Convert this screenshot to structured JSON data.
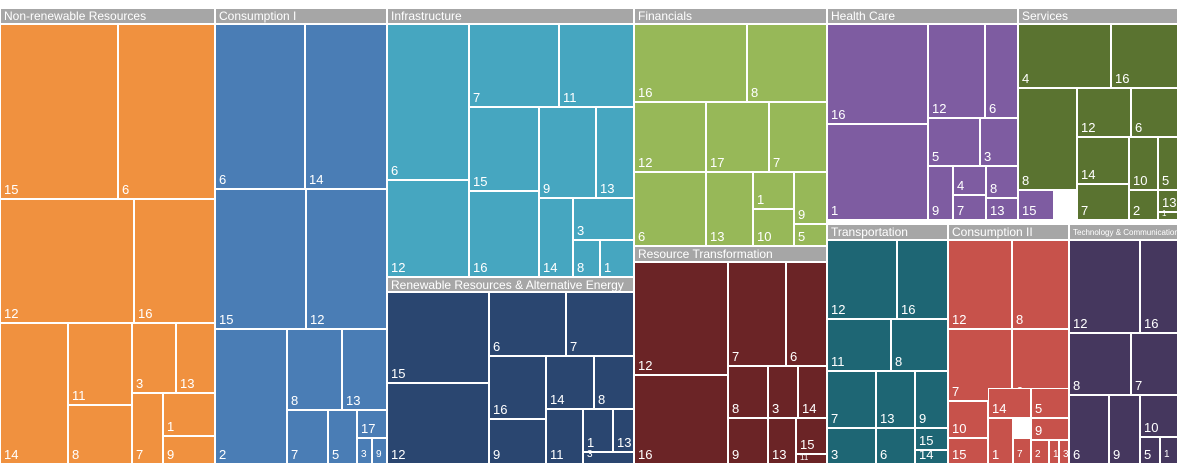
{
  "chart_data": {
    "type": "treemap",
    "groups": [
      {
        "name": "Non-renewable Resources",
        "color": "#f0913f",
        "cells": [
          "15",
          "6",
          "12",
          "16",
          "14",
          "11",
          "8",
          "3",
          "13",
          "7",
          "1",
          "9"
        ]
      },
      {
        "name": "Consumption I",
        "color": "#4a7db5",
        "cells": [
          "6",
          "14",
          "15",
          "12",
          "2",
          "8",
          "13",
          "7",
          "5",
          "17",
          "3",
          "9"
        ]
      },
      {
        "name": "Infrastructure",
        "color": "#46a6c0",
        "cells": [
          "6",
          "7",
          "11",
          "15",
          "9",
          "13",
          "12",
          "16",
          "3",
          "14",
          "8",
          "1"
        ]
      },
      {
        "name": "Renewable Resources & Alternative Energy",
        "color": "#2a4670",
        "cells": [
          "15",
          "6",
          "7",
          "16",
          "14",
          "8",
          "12",
          "9",
          "11",
          "1",
          "13",
          "3"
        ]
      },
      {
        "name": "Financials",
        "color": "#97b858",
        "cells": [
          "16",
          "8",
          "12",
          "17",
          "7",
          "6",
          "13",
          "1",
          "9",
          "10",
          "5"
        ]
      },
      {
        "name": "Resource Transformation",
        "color": "#6b2426",
        "cells": [
          "12",
          "7",
          "6",
          "16",
          "8",
          "3",
          "14",
          "9",
          "13",
          "15",
          "11"
        ]
      },
      {
        "name": "Health Care",
        "color": "#7e5ca1",
        "cells": [
          "16",
          "12",
          "6",
          "1",
          "5",
          "3",
          "4",
          "8",
          "9",
          "7",
          "13",
          "15"
        ]
      },
      {
        "name": "Services",
        "color": "#5a7330",
        "cells": [
          "4",
          "16",
          "12",
          "6",
          "8",
          "14",
          "10",
          "5",
          "13",
          "7",
          "2",
          "1"
        ]
      },
      {
        "name": "Transportation",
        "color": "#1e6674",
        "cells": [
          "12",
          "16",
          "11",
          "8",
          "7",
          "13",
          "9",
          "15",
          "3",
          "6",
          "14"
        ]
      },
      {
        "name": "Consumption II",
        "color": "#c7524b",
        "cells": [
          "12",
          "8",
          "7",
          "6",
          "10",
          "14",
          "5",
          "1",
          "9",
          "15",
          "7",
          "2",
          "1",
          "3"
        ]
      },
      {
        "name": "Technology & Communication",
        "color": "#45375e",
        "cells": [
          "12",
          "16",
          "8",
          "7",
          "10",
          "6",
          "9",
          "5",
          "1"
        ]
      }
    ]
  }
}
